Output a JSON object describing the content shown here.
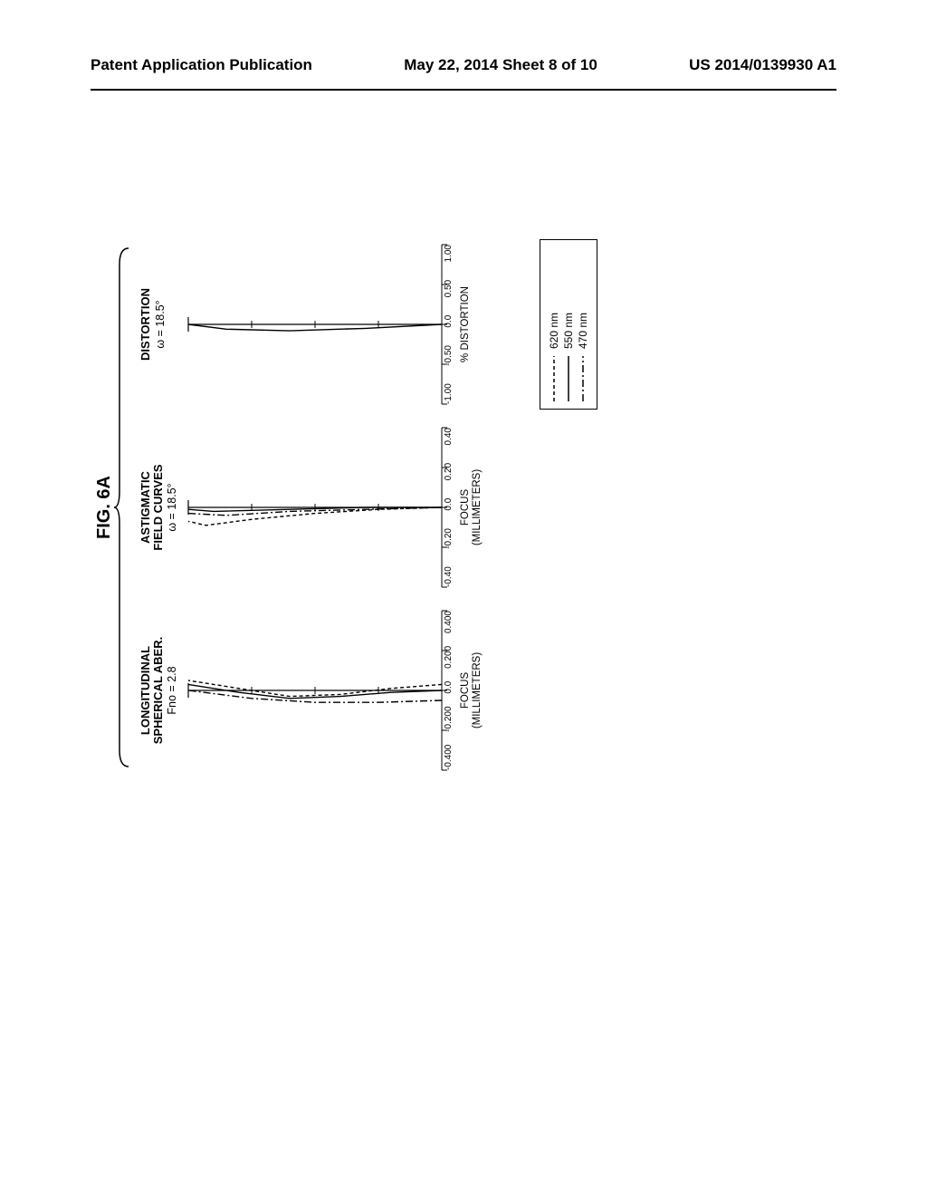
{
  "header": {
    "left": "Patent Application Publication",
    "center": "May 22, 2014  Sheet 8 of 10",
    "right": "US 2014/0139930 A1"
  },
  "figure_label": "FIG. 6A",
  "panels": {
    "spherical": {
      "title": "LONGITUDINAL\nSPHERICAL ABER.",
      "sub": "Fno = 2.8",
      "xlim": [
        -0.4,
        0.4
      ],
      "ticks": [
        "-0.400",
        "-0.200",
        "0.0",
        "0.200",
        "0.400"
      ],
      "xlabel": "FOCUS\n(MILLIMETERS)",
      "series": {
        "w620": {
          "dash": "4,3",
          "color": "#000000",
          "pts": [
            [
              0.03,
              0
            ],
            [
              0.01,
              0.2
            ],
            [
              -0.02,
              0.4
            ],
            [
              -0.03,
              0.6
            ],
            [
              0.01,
              0.8
            ],
            [
              0.05,
              1.0
            ]
          ]
        },
        "w550": {
          "dash": "none",
          "color": "#000000",
          "pts": [
            [
              0.0,
              0
            ],
            [
              -0.01,
              0.2
            ],
            [
              -0.03,
              0.4
            ],
            [
              -0.04,
              0.6
            ],
            [
              -0.01,
              0.8
            ],
            [
              0.03,
              1.0
            ]
          ]
        },
        "w470": {
          "dash": "8,3,2,3",
          "color": "#000000",
          "pts": [
            [
              -0.05,
              0
            ],
            [
              -0.06,
              0.25
            ],
            [
              -0.06,
              0.5
            ],
            [
              -0.04,
              0.75
            ],
            [
              0.0,
              1.0
            ]
          ]
        }
      }
    },
    "astig": {
      "title": "ASTIGMATIC\nFIELD CURVES",
      "sub": "ω = 18.5°",
      "xlim": [
        -0.4,
        0.4
      ],
      "ticks": [
        "-0.40",
        "-0.20",
        "0.0",
        "0.20",
        "0.40"
      ],
      "xlabel": "FOCUS\n(MILLIMETERS)",
      "series": {
        "s620": {
          "dash": "4,3",
          "color": "#000000",
          "pts": [
            [
              0.0,
              0
            ],
            [
              -0.01,
              0.25
            ],
            [
              -0.03,
              0.5
            ],
            [
              -0.06,
              0.75
            ],
            [
              -0.09,
              0.93
            ],
            [
              -0.07,
              1.0
            ]
          ]
        },
        "t550": {
          "dash": "none",
          "color": "#000000",
          "pts": [
            [
              0.0,
              0
            ],
            [
              0.0,
              0.3
            ],
            [
              -0.01,
              0.6
            ],
            [
              -0.02,
              0.9
            ],
            [
              -0.01,
              1.0
            ]
          ]
        },
        "s470": {
          "dash": "8,3,2,3",
          "color": "#000000",
          "pts": [
            [
              0.0,
              0
            ],
            [
              -0.01,
              0.3
            ],
            [
              -0.02,
              0.6
            ],
            [
              -0.04,
              0.85
            ],
            [
              -0.03,
              1.0
            ]
          ]
        }
      }
    },
    "dist": {
      "title": "DISTORTION",
      "sub": "ω = 18.5°",
      "xlim": [
        -1.0,
        1.0
      ],
      "ticks": [
        "-1.00",
        "-0.50",
        "0.0",
        "0.50",
        "1.00"
      ],
      "xlabel": "% DISTORTION",
      "series": {
        "d": {
          "dash": "none",
          "color": "#000000",
          "pts": [
            [
              0.0,
              0
            ],
            [
              -0.05,
              0.3
            ],
            [
              -0.08,
              0.6
            ],
            [
              -0.06,
              0.85
            ],
            [
              0.0,
              1.0
            ]
          ]
        }
      }
    }
  },
  "legend": [
    {
      "label": "620 nm",
      "dash": "4,3"
    },
    {
      "label": "550 nm",
      "dash": "none"
    },
    {
      "label": "470 nm",
      "dash": "8,3,2,3"
    }
  ]
}
